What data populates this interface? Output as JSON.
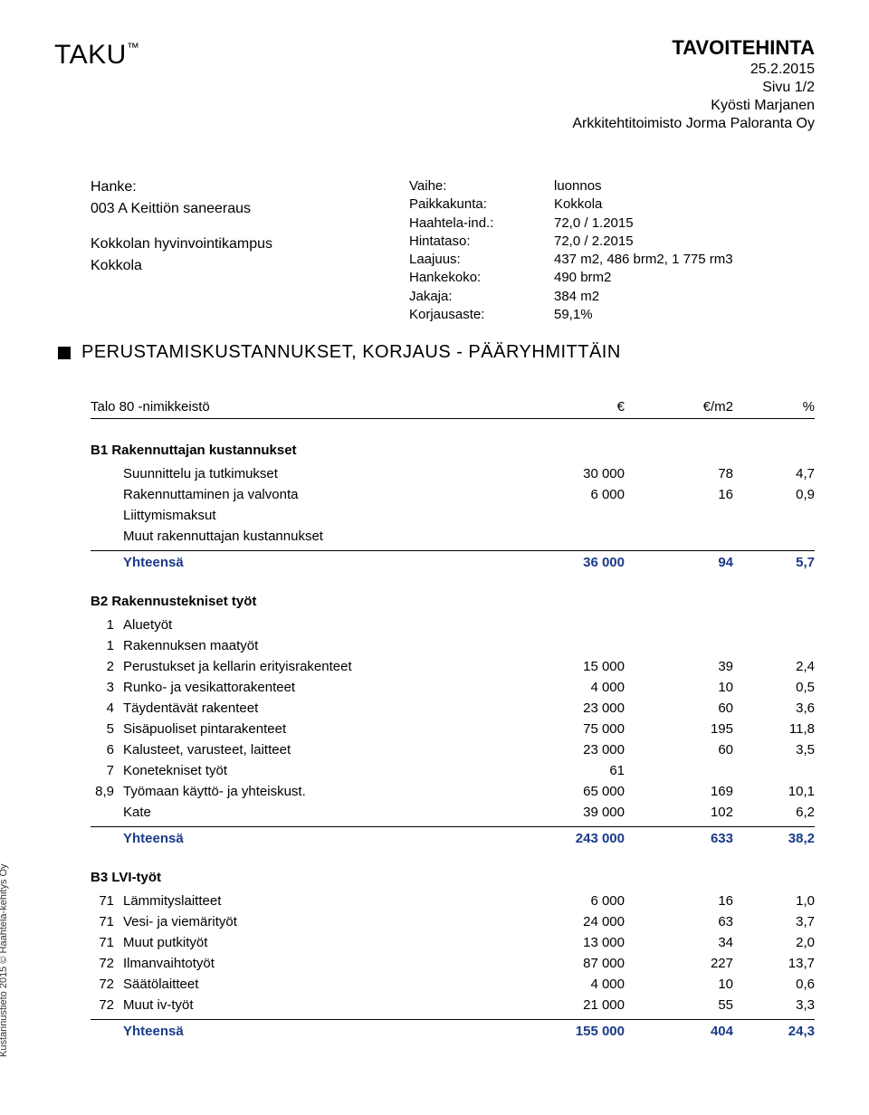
{
  "colors": {
    "text": "#000000",
    "sum_blue": "#1a3a8a",
    "rule": "#000000",
    "background": "#ffffff"
  },
  "brand": "TAKU",
  "tm": "™",
  "doc_title": "TAVOITEHINTA",
  "doc_date": "25.2.2015",
  "doc_page": "Sivu 1/2",
  "doc_author": "Kyösti Marjanen",
  "doc_office": "Arkkitehtitoimisto Jorma Paloranta Oy",
  "project_lbl": "Hanke:",
  "project_code": "003 A Keittiön saneeraus",
  "project_line1": "Kokkolan hyvinvointikampus",
  "project_line2": "Kokkola",
  "metadata": [
    {
      "l": "Vaihe:",
      "v": "luonnos"
    },
    {
      "l": "Paikkakunta:",
      "v": "Kokkola"
    },
    {
      "l": "Haahtela-ind.:",
      "v": "72,0 / 1.2015"
    },
    {
      "l": "Hintataso:",
      "v": "72,0 / 2.2015"
    },
    {
      "l": "Laajuus:",
      "v": "437 m2,  486 brm2, 1 775 rm3"
    },
    {
      "l": "Hankekoko:",
      "v": "490 brm2"
    },
    {
      "l": "Jakaja:",
      "v": "384 m2"
    },
    {
      "l": "Korjausaste:",
      "v": "59,1%"
    }
  ],
  "section_title": "PERUSTAMISKUSTANNUKSET, KORJAUS - PÄÄRYHMITTÄIN",
  "thead": {
    "label": "Talo 80 -nimikkeistö",
    "eur": "€",
    "m2": "€/m2",
    "pct": "%"
  },
  "b1": {
    "title": "B1 Rakennuttajan kustannukset",
    "rows": [
      {
        "label": "Suunnittelu ja tutkimukset",
        "eur": "30 000",
        "m2": "78",
        "pct": "4,7"
      },
      {
        "label": "Rakennuttaminen ja valvonta",
        "eur": "6 000",
        "m2": "16",
        "pct": "0,9"
      },
      {
        "label": "Liittymismaksut",
        "eur": "",
        "m2": "",
        "pct": ""
      },
      {
        "label": "Muut rakennuttajan kustannukset",
        "eur": "",
        "m2": "",
        "pct": ""
      }
    ],
    "sum": {
      "label": "Yhteensä",
      "eur": "36 000",
      "m2": "94",
      "pct": "5,7"
    }
  },
  "b2": {
    "title": "B2 Rakennustekniset työt",
    "rows": [
      {
        "idx": "1",
        "label": "Aluetyöt",
        "eur": "",
        "m2": "",
        "pct": ""
      },
      {
        "idx": "1",
        "label": "Rakennuksen maatyöt",
        "eur": "",
        "m2": "",
        "pct": ""
      },
      {
        "idx": "2",
        "label": "Perustukset ja kellarin erityisrakenteet",
        "eur": "15 000",
        "m2": "39",
        "pct": "2,4"
      },
      {
        "idx": "3",
        "label": "Runko- ja vesikattorakenteet",
        "eur": "4 000",
        "m2": "10",
        "pct": "0,5"
      },
      {
        "idx": "4",
        "label": "Täydentävät rakenteet",
        "eur": "23 000",
        "m2": "60",
        "pct": "3,6"
      },
      {
        "idx": "5",
        "label": "Sisäpuoliset pintarakenteet",
        "eur": "75 000",
        "m2": "195",
        "pct": "11,8"
      },
      {
        "idx": "6",
        "label": "Kalusteet, varusteet, laitteet",
        "eur": "23 000",
        "m2": "60",
        "pct": "3,5"
      },
      {
        "idx": "7",
        "label": "Konetekniset työt",
        "eur": "61",
        "m2": "",
        "pct": ""
      },
      {
        "idx": "8,9",
        "label": "Työmaan käyttö- ja yhteiskust.",
        "eur": "65 000",
        "m2": "169",
        "pct": "10,1"
      },
      {
        "idx": "",
        "label": "Kate",
        "eur": "39 000",
        "m2": "102",
        "pct": "6,2"
      }
    ],
    "sum": {
      "label": "Yhteensä",
      "eur": "243 000",
      "m2": "633",
      "pct": "38,2"
    }
  },
  "b3": {
    "title": "B3 LVI-työt",
    "rows": [
      {
        "idx": "71",
        "label": "Lämmityslaitteet",
        "eur": "6 000",
        "m2": "16",
        "pct": "1,0"
      },
      {
        "idx": "71",
        "label": "Vesi- ja viemärityöt",
        "eur": "24 000",
        "m2": "63",
        "pct": "3,7"
      },
      {
        "idx": "71",
        "label": "Muut putkityöt",
        "eur": "13 000",
        "m2": "34",
        "pct": "2,0"
      },
      {
        "idx": "72",
        "label": "Ilmanvaihtotyöt",
        "eur": "87 000",
        "m2": "227",
        "pct": "13,7"
      },
      {
        "idx": "72",
        "label": "Säätölaitteet",
        "eur": "4 000",
        "m2": "10",
        "pct": "0,6"
      },
      {
        "idx": "72",
        "label": "Muut iv-työt",
        "eur": "21 000",
        "m2": "55",
        "pct": "3,3"
      }
    ],
    "sum": {
      "label": "Yhteensä",
      "eur": "155 000",
      "m2": "404",
      "pct": "24,3"
    }
  },
  "side_caption": "Kustannustieto 2015 © Haahtela-kehitys Oy"
}
